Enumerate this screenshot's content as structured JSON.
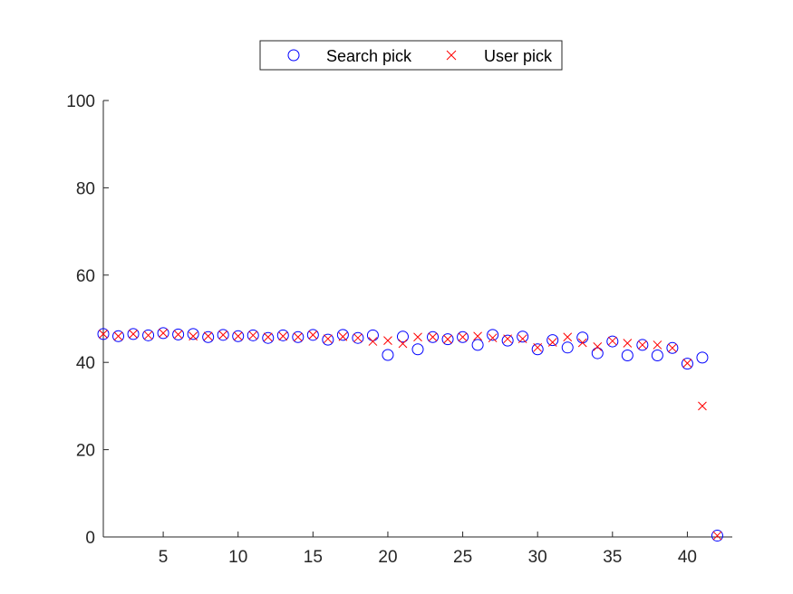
{
  "chart_data": {
    "type": "scatter",
    "x": [
      1,
      2,
      3,
      4,
      5,
      6,
      7,
      8,
      9,
      10,
      11,
      12,
      13,
      14,
      15,
      16,
      17,
      18,
      19,
      20,
      21,
      22,
      23,
      24,
      25,
      26,
      27,
      28,
      29,
      30,
      31,
      32,
      33,
      34,
      35,
      36,
      37,
      38,
      39,
      40,
      41,
      42
    ],
    "series": [
      {
        "name": "Search pick",
        "marker": "circle",
        "color": "#0000ff",
        "values": [
          46.5,
          46.0,
          46.5,
          46.2,
          46.7,
          46.4,
          46.5,
          45.8,
          46.3,
          46.0,
          46.2,
          45.6,
          46.2,
          45.8,
          46.3,
          45.2,
          46.3,
          45.6,
          46.2,
          41.7,
          45.9,
          43.0,
          45.8,
          45.3,
          45.8,
          44.0,
          46.3,
          45.0,
          45.9,
          43.0,
          45.1,
          43.4,
          45.7,
          42.1,
          44.8,
          41.6,
          44.0,
          41.6,
          43.3,
          39.7,
          41.1,
          0.3
        ]
      },
      {
        "name": "User pick",
        "marker": "x",
        "color": "#ff0000",
        "values": [
          46.5,
          46.0,
          46.5,
          46.2,
          46.7,
          46.4,
          46.0,
          46.0,
          46.3,
          46.0,
          46.2,
          45.8,
          46.0,
          45.8,
          46.3,
          45.4,
          45.9,
          45.6,
          44.8,
          45.0,
          44.3,
          45.8,
          45.8,
          45.3,
          45.8,
          46.0,
          45.6,
          45.4,
          45.4,
          43.4,
          44.6,
          45.8,
          44.5,
          43.6,
          44.9,
          44.4,
          44.0,
          44.0,
          43.3,
          39.8,
          30.0,
          0.3
        ]
      }
    ],
    "xlim": [
      1,
      43
    ],
    "ylim": [
      0,
      100
    ],
    "xticks": [
      5,
      10,
      15,
      20,
      25,
      30,
      35,
      40
    ],
    "yticks": [
      0,
      20,
      40,
      60,
      80,
      100
    ],
    "title": "",
    "xlabel": "",
    "ylabel": "",
    "grid": false,
    "legend_position": "top-center"
  }
}
